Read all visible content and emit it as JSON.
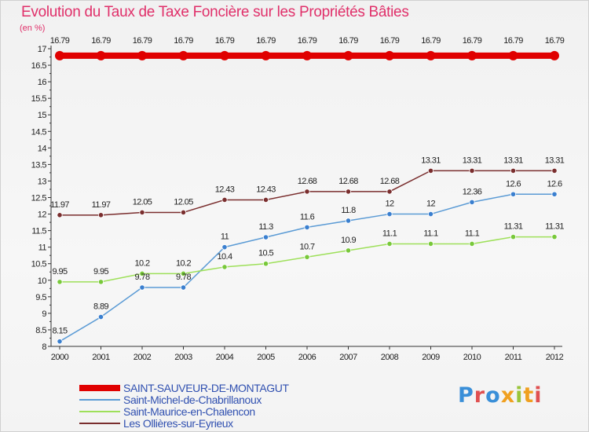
{
  "header": {
    "title": "Evolution du Taux de Taxe Foncière sur les Propriétés Bâties",
    "unit": "(en %)"
  },
  "logo": {
    "letters": [
      "P",
      "r",
      "o",
      "x",
      "i",
      "t",
      "i"
    ]
  },
  "colors": {
    "series": [
      "#e00000",
      "#5b9bd5",
      "#9ee05a",
      "#7a2e2e"
    ],
    "markers": [
      "#e00000",
      "#3a7fcf",
      "#78c83a",
      "#7a2e2e"
    ],
    "title": "#e0306a"
  },
  "chart_data": {
    "type": "line",
    "title": "Evolution du Taux de Taxe Foncière sur les Propriétés Bâties",
    "ylabel": "(en %)",
    "xlabel": "",
    "ylim": [
      8,
      17
    ],
    "y_major_ticks": [
      "8",
      "8.5",
      "9",
      "9.5",
      "10",
      "10.5",
      "11",
      "11.5",
      "12",
      "12.5",
      "13",
      "13.5",
      "14",
      "14.5",
      "15",
      "15.5",
      "16",
      "16.5",
      "17"
    ],
    "categories": [
      "2000",
      "2001",
      "2002",
      "2003",
      "2004",
      "2005",
      "2006",
      "2007",
      "2008",
      "2009",
      "2010",
      "2011",
      "2012"
    ],
    "series": [
      {
        "name": "SAINT-SAUVEUR-DE-MONTAGUT",
        "values": [
          16.79,
          16.79,
          16.79,
          16.79,
          16.79,
          16.79,
          16.79,
          16.79,
          16.79,
          16.79,
          16.79,
          16.79,
          16.79
        ],
        "labels": [
          "16.79",
          "16.79",
          "16.79",
          "16.79",
          "16.79",
          "16.79",
          "16.79",
          "16.79",
          "16.79",
          "16.79",
          "16.79",
          "16.79",
          "16.79"
        ]
      },
      {
        "name": "Saint-Michel-de-Chabrillanoux",
        "values": [
          8.15,
          8.89,
          9.78,
          9.78,
          11,
          11.3,
          11.6,
          11.8,
          12,
          12,
          12.36,
          12.6,
          12.6
        ],
        "labels": [
          "8.15",
          "8.89",
          "9.78",
          "9.78",
          "11",
          "11.3",
          "11.6",
          "11.8",
          "12",
          "12",
          "12.36",
          "12.6",
          "12.6"
        ]
      },
      {
        "name": "Saint-Maurice-en-Chalencon",
        "values": [
          9.95,
          9.95,
          10.2,
          10.2,
          10.4,
          10.5,
          10.7,
          10.9,
          11.1,
          11.1,
          11.1,
          11.31,
          11.31
        ],
        "labels": [
          "9.95",
          "9.95",
          "10.2",
          "10.2",
          "10.4",
          "10.5",
          "10.7",
          "10.9",
          "11.1",
          "11.1",
          "11.1",
          "11.31",
          "11.31"
        ]
      },
      {
        "name": "Les Ollières-sur-Eyrieux",
        "values": [
          11.97,
          11.97,
          12.05,
          12.05,
          12.43,
          12.43,
          12.68,
          12.68,
          12.68,
          13.31,
          13.31,
          13.31,
          13.31
        ],
        "labels": [
          "11.97",
          "11.97",
          "12.05",
          "12.05",
          "12.43",
          "12.43",
          "12.68",
          "12.68",
          "12.68",
          "13.31",
          "13.31",
          "13.31",
          "13.31"
        ]
      }
    ],
    "grid": false,
    "legend": "bottom-left"
  }
}
